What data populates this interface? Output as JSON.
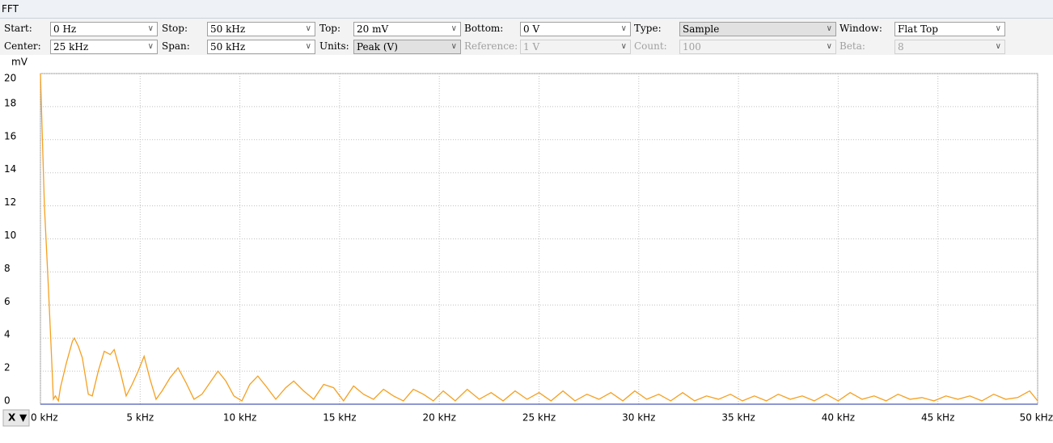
{
  "window_title": "FFT",
  "controls": [
    {
      "label": "Start:",
      "value": "0 Hz"
    },
    {
      "label": "Stop:",
      "value": "50 kHz"
    },
    {
      "label": "Top:",
      "value": "20 mV"
    },
    {
      "label": "Bottom:",
      "value": "0 V"
    },
    {
      "label": "Type:",
      "value": "Sample",
      "style": "gray"
    },
    {
      "label": "Window:",
      "value": "Flat Top"
    },
    {
      "label": "Center:",
      "value": "25 kHz"
    },
    {
      "label": "Span:",
      "value": "50 kHz"
    },
    {
      "label": "Units:",
      "value": "Peak (V)",
      "style": "gray"
    },
    {
      "label": "Reference:",
      "value": "1 V",
      "style": "disabled"
    },
    {
      "label": "Count:",
      "value": "100",
      "style": "disabled"
    },
    {
      "label": "Beta:",
      "value": "8",
      "style": "disabled"
    }
  ],
  "x_axis_button": "X",
  "chart_data": {
    "type": "line",
    "y_unit": "mV",
    "grid": true,
    "xlim": [
      0,
      50
    ],
    "xticks": [
      {
        "value": 0,
        "label": "0 kHz"
      },
      {
        "value": 5,
        "label": "5 kHz"
      },
      {
        "value": 10,
        "label": "10 kHz"
      },
      {
        "value": 15,
        "label": "15 kHz"
      },
      {
        "value": 20,
        "label": "20 kHz"
      },
      {
        "value": 25,
        "label": "25 kHz"
      },
      {
        "value": 30,
        "label": "30 kHz"
      },
      {
        "value": 35,
        "label": "35 kHz"
      },
      {
        "value": 40,
        "label": "40 kHz"
      },
      {
        "value": 45,
        "label": "45 kHz"
      },
      {
        "value": 50,
        "label": "50 kHz"
      }
    ],
    "ylim": [
      0,
      20
    ],
    "yticks": [
      0,
      2,
      4,
      6,
      8,
      10,
      12,
      14,
      16,
      18,
      20
    ],
    "x": [
      0,
      0.2,
      0.4,
      0.55,
      0.65,
      0.75,
      0.9,
      1.0,
      1.3,
      1.6,
      1.7,
      1.9,
      2.1,
      2.4,
      2.6,
      2.9,
      3.2,
      3.5,
      3.7,
      4.0,
      4.3,
      4.6,
      4.9,
      5.2,
      5.5,
      5.8,
      6.1,
      6.5,
      6.9,
      7.3,
      7.7,
      8.1,
      8.5,
      8.9,
      9.3,
      9.7,
      10.1,
      10.5,
      10.9,
      11.3,
      11.8,
      12.3,
      12.7,
      13.2,
      13.7,
      14.2,
      14.7,
      15.2,
      15.7,
      16.2,
      16.7,
      17.2,
      17.7,
      18.2,
      18.7,
      19.2,
      19.7,
      20.2,
      20.8,
      21.4,
      22.0,
      22.6,
      23.2,
      23.8,
      24.4,
      25.0,
      25.6,
      26.2,
      26.8,
      27.4,
      28.0,
      28.6,
      29.2,
      29.8,
      30.4,
      31.0,
      31.6,
      32.2,
      32.8,
      33.4,
      34.0,
      34.6,
      35.2,
      35.8,
      36.4,
      37.0,
      37.6,
      38.2,
      38.8,
      39.4,
      40.0,
      40.6,
      41.2,
      41.8,
      42.4,
      43.0,
      43.6,
      44.2,
      44.8,
      45.4,
      46.0,
      46.6,
      47.2,
      47.8,
      48.4,
      49.0,
      49.6,
      50.0
    ],
    "series": [
      {
        "color": "#f5a020",
        "values": [
          20,
          12,
          7,
          3,
          0.3,
          0.5,
          0.2,
          1,
          2.5,
          3.8,
          4.0,
          3.5,
          2.8,
          0.6,
          0.5,
          2.0,
          3.2,
          3.0,
          3.3,
          2.0,
          0.5,
          1.2,
          2.0,
          2.9,
          1.5,
          0.3,
          0.8,
          1.6,
          2.2,
          1.3,
          0.3,
          0.6,
          1.3,
          2.0,
          1.4,
          0.5,
          0.2,
          1.2,
          1.7,
          1.1,
          0.3,
          1.0,
          1.4,
          0.8,
          0.3,
          1.2,
          1.0,
          0.2,
          1.1,
          0.6,
          0.3,
          0.9,
          0.5,
          0.2,
          0.9,
          0.6,
          0.2,
          0.8,
          0.2,
          0.9,
          0.3,
          0.7,
          0.2,
          0.8,
          0.3,
          0.7,
          0.2,
          0.8,
          0.2,
          0.6,
          0.3,
          0.7,
          0.2,
          0.8,
          0.3,
          0.6,
          0.2,
          0.7,
          0.2,
          0.5,
          0.3,
          0.6,
          0.2,
          0.5,
          0.2,
          0.6,
          0.3,
          0.5,
          0.2,
          0.6,
          0.2,
          0.7,
          0.3,
          0.5,
          0.2,
          0.6,
          0.3,
          0.4,
          0.2,
          0.5,
          0.3,
          0.5,
          0.2,
          0.6,
          0.3,
          0.4,
          0.8,
          0.2
        ]
      }
    ]
  }
}
